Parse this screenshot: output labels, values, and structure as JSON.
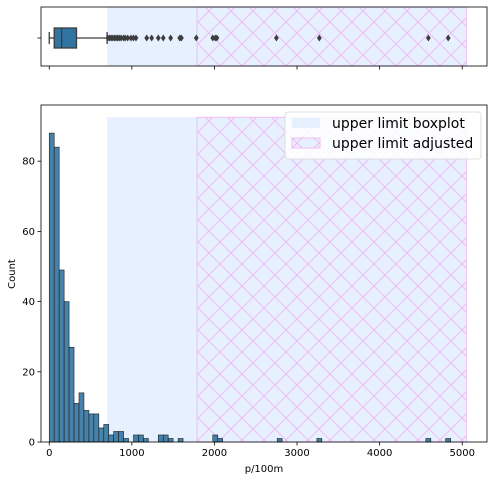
{
  "chart_data": [
    {
      "type": "boxplot",
      "orientation": "horizontal",
      "color": "#3274a1",
      "xlim": [
        -100,
        5300
      ],
      "y_tick_labels": [
        ""
      ],
      "box": {
        "whisker_low": 0,
        "q1": 60,
        "median": 150,
        "q3": 330,
        "whisker_high": 700
      },
      "outliers": [
        710,
        730,
        750,
        770,
        790,
        810,
        830,
        850,
        870,
        900,
        920,
        950,
        990,
        1020,
        1050,
        1180,
        1240,
        1320,
        1380,
        1470,
        1580,
        1600,
        1780,
        1980,
        2010,
        2030,
        2750,
        3270,
        4590,
        4830
      ],
      "shade_regions": [
        {
          "name": "upper limit boxplot",
          "x0": 700,
          "x1": 1790,
          "color": "#e6f0ff",
          "hatch": false
        },
        {
          "name": "upper limit adjusted",
          "x0": 1790,
          "x1": 5050,
          "color": "#e6f0ff",
          "hatch": true,
          "hatch_color": "#f2b6f2"
        }
      ]
    },
    {
      "type": "histogram",
      "xlabel": "p/100m",
      "ylabel": "Count",
      "xlim": [
        -100,
        5300
      ],
      "ylim": [
        0,
        96
      ],
      "x_ticks": [
        0,
        1000,
        2000,
        3000,
        4000,
        5000
      ],
      "y_ticks": [
        0,
        20,
        40,
        60,
        80
      ],
      "bar_color": "#3274a1",
      "bin_start": 0,
      "bin_width": 60,
      "counts": [
        88,
        84,
        49,
        40,
        27,
        11,
        14,
        9,
        8,
        8,
        4,
        5,
        2,
        3,
        3,
        1,
        0,
        2,
        2,
        1,
        0,
        0,
        2,
        2,
        1,
        0,
        1,
        0,
        0,
        0,
        0,
        0,
        0,
        2,
        1,
        0,
        0,
        0,
        0,
        0,
        0,
        0,
        0,
        0,
        0,
        0,
        1,
        0,
        0,
        0,
        0,
        0,
        0,
        0,
        1,
        0,
        0,
        0,
        0,
        0,
        0,
        0,
        0,
        0,
        0,
        0,
        0,
        0,
        0,
        0,
        0,
        0,
        0,
        0,
        0,
        0,
        1,
        0,
        0,
        0,
        1
      ],
      "shade_regions": [
        {
          "name": "upper limit boxplot",
          "x0": 700,
          "x1": 1790,
          "y1": 92.5,
          "color": "#e6f0ff",
          "hatch": false
        },
        {
          "name": "upper limit adjusted",
          "x0": 1790,
          "x1": 5050,
          "y1": 92.5,
          "color": "#e6f0ff",
          "hatch": true,
          "hatch_color": "#f2b6f2"
        }
      ],
      "legend": {
        "position": "top-right",
        "entries": [
          {
            "label": "upper limit boxplot",
            "color": "#e6f0ff",
            "hatch": false
          },
          {
            "label": "upper limit adjusted",
            "color": "#e6f0ff",
            "hatch": true,
            "hatch_color": "#f2b6f2"
          }
        ]
      }
    }
  ]
}
